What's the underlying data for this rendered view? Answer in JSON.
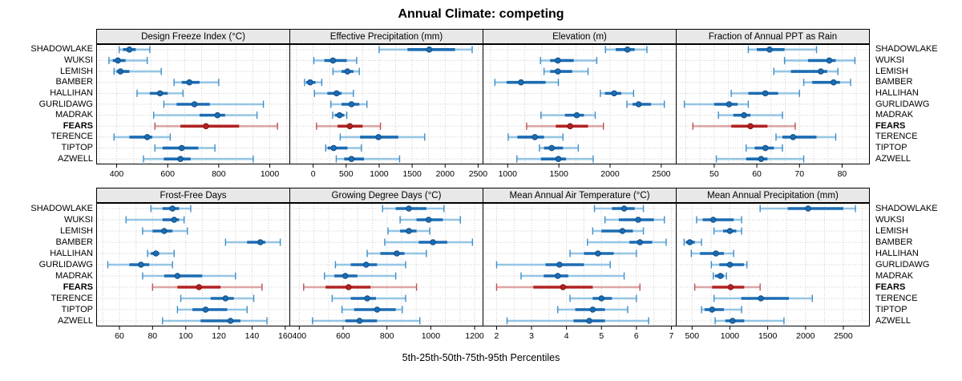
{
  "title": "Annual Climate: competing",
  "caption": "5th-25th-50th-75th-95th Percentiles",
  "colors": {
    "normal_dark": "#1b6cb3",
    "normal_light": "#96c5e3",
    "normal_cap": "#3d8ec9",
    "normal_edge": "#114e84",
    "highlight_dark": "#b22222",
    "highlight_light": "#dca6a6",
    "highlight_cap": "#c05050",
    "highlight_edge": "#7e1414",
    "grid": "#cccccc",
    "header_bg": "#e8e8e8",
    "border": "#000000"
  },
  "chart_data": {
    "type": "percentile-dotplot",
    "percentile_labels": [
      "5th",
      "25th",
      "50th",
      "75th",
      "95th"
    ],
    "sites": [
      "SHADOWLAKE",
      "WUKSI",
      "LEMISH",
      "BAMBER",
      "HALLIHAN",
      "GURLIDAWG",
      "MADRAK",
      "FEARS",
      "TERENCE",
      "TIPTOP",
      "AZWELL"
    ],
    "highlighted_site": "FEARS",
    "panels": [
      {
        "title": "Design Freeze Index (°C)",
        "row": 1,
        "xlim": [
          320,
          1080
        ],
        "ticks": [
          400,
          600,
          800,
          1000
        ],
        "values": [
          [
            410,
            425,
            450,
            475,
            530
          ],
          [
            370,
            385,
            405,
            435,
            520
          ],
          [
            390,
            400,
            415,
            450,
            575
          ],
          [
            625,
            655,
            685,
            725,
            800
          ],
          [
            480,
            530,
            570,
            600,
            660
          ],
          [
            585,
            635,
            705,
            765,
            975
          ],
          [
            545,
            725,
            795,
            825,
            950
          ],
          [
            550,
            650,
            750,
            880,
            1030
          ],
          [
            390,
            450,
            520,
            540,
            610
          ],
          [
            550,
            580,
            655,
            720,
            785
          ],
          [
            505,
            585,
            650,
            690,
            935
          ]
        ]
      },
      {
        "title": "Effective Precipitation (mm)",
        "row": 1,
        "xlim": [
          -360,
          2580
        ],
        "ticks": [
          0,
          500,
          1000,
          1500,
          2000,
          2500
        ],
        "values": [
          [
            1000,
            1430,
            1760,
            2150,
            2410
          ],
          [
            10,
            170,
            300,
            510,
            660
          ],
          [
            300,
            430,
            520,
            610,
            700
          ],
          [
            -130,
            -105,
            -45,
            35,
            130
          ],
          [
            20,
            215,
            355,
            430,
            610
          ],
          [
            270,
            430,
            580,
            700,
            815
          ],
          [
            295,
            330,
            400,
            470,
            510
          ],
          [
            50,
            370,
            555,
            750,
            1020
          ],
          [
            410,
            710,
            990,
            1290,
            1690
          ],
          [
            190,
            220,
            310,
            520,
            730
          ],
          [
            350,
            470,
            580,
            770,
            1310
          ]
        ]
      },
      {
        "title": "Elevation (m)",
        "row": 1,
        "xlim": [
          755,
          2650
        ],
        "ticks": [
          1000,
          1500,
          2000,
          2500
        ],
        "values": [
          [
            1955,
            2055,
            2170,
            2240,
            2360
          ],
          [
            1320,
            1415,
            1490,
            1645,
            1870
          ],
          [
            1355,
            1415,
            1490,
            1630,
            1785
          ],
          [
            875,
            990,
            1130,
            1370,
            1495
          ],
          [
            1905,
            1950,
            2040,
            2110,
            2230
          ],
          [
            2165,
            2220,
            2280,
            2400,
            2530
          ],
          [
            1325,
            1560,
            1675,
            1745,
            1855
          ],
          [
            1185,
            1470,
            1610,
            1785,
            1935
          ],
          [
            1005,
            1095,
            1265,
            1355,
            1540
          ],
          [
            1310,
            1355,
            1430,
            1540,
            1690
          ],
          [
            1090,
            1325,
            1495,
            1570,
            1835
          ]
        ]
      },
      {
        "title": "Fraction of Annual PPT as Rain",
        "row": 1,
        "xlim": [
          41,
          86.5
        ],
        "ticks": [
          50,
          60,
          70,
          80
        ],
        "values": [
          [
            58,
            60,
            63,
            66.5,
            74
          ],
          [
            66.5,
            72,
            77,
            78.5,
            83
          ],
          [
            64,
            68,
            75,
            76.5,
            79
          ],
          [
            71,
            73,
            78,
            79.5,
            82
          ],
          [
            54,
            58,
            62,
            65,
            70
          ],
          [
            43,
            50,
            53.5,
            55.5,
            58
          ],
          [
            51,
            54.5,
            57,
            58.5,
            66
          ],
          [
            45,
            54,
            58.5,
            62.5,
            69
          ],
          [
            64.5,
            66,
            68.5,
            74,
            78.5
          ],
          [
            57.5,
            59.5,
            62,
            64,
            66
          ],
          [
            50.5,
            57.5,
            61,
            62.5,
            71
          ]
        ]
      },
      {
        "title": "Frost-Free Days",
        "row": 2,
        "xlim": [
          46,
          163
        ],
        "ticks": [
          60,
          80,
          100,
          120,
          140,
          160
        ],
        "values": [
          [
            79,
            86,
            92,
            96,
            103
          ],
          [
            64,
            86,
            93,
            96,
            99
          ],
          [
            74,
            80,
            87,
            92,
            101
          ],
          [
            124,
            137,
            145,
            148,
            157
          ],
          [
            77,
            79,
            82,
            84,
            93
          ],
          [
            53,
            66,
            73,
            78,
            92
          ],
          [
            74,
            87,
            95,
            110,
            130
          ],
          [
            80,
            95,
            108,
            121,
            146
          ],
          [
            97,
            115,
            124,
            129,
            141
          ],
          [
            95,
            104,
            112,
            125,
            137
          ],
          [
            86,
            109,
            127,
            133,
            149
          ]
        ]
      },
      {
        "title": "Growing Degree Days (°C)",
        "row": 2,
        "xlim": [
          355,
          1240
        ],
        "ticks": [
          400,
          600,
          800,
          1000,
          1200
        ],
        "values": [
          [
            780,
            840,
            900,
            980,
            1060
          ],
          [
            860,
            935,
            990,
            1055,
            1135
          ],
          [
            805,
            860,
            900,
            935,
            995
          ],
          [
            790,
            945,
            1010,
            1075,
            1190
          ],
          [
            710,
            770,
            845,
            880,
            980
          ],
          [
            565,
            635,
            705,
            755,
            885
          ],
          [
            515,
            560,
            610,
            665,
            840
          ],
          [
            420,
            520,
            625,
            725,
            935
          ],
          [
            550,
            635,
            710,
            750,
            885
          ],
          [
            595,
            650,
            755,
            840,
            870
          ],
          [
            460,
            610,
            675,
            755,
            950
          ]
        ]
      },
      {
        "title": "Mean Annual Air Temperature (°C)",
        "row": 2,
        "xlim": [
          1.6,
          7.15
        ],
        "ticks": [
          2,
          3,
          4,
          5,
          6,
          7
        ],
        "values": [
          [
            4.8,
            5.3,
            5.65,
            5.95,
            6.2
          ],
          [
            5.1,
            5.5,
            6.05,
            6.5,
            6.8
          ],
          [
            4.75,
            5.0,
            5.6,
            5.9,
            6.2
          ],
          [
            4.6,
            5.8,
            6.1,
            6.45,
            6.85
          ],
          [
            4.1,
            4.5,
            4.9,
            5.35,
            6.0
          ],
          [
            2.0,
            3.4,
            3.8,
            4.5,
            5.25
          ],
          [
            2.7,
            3.35,
            3.75,
            4.05,
            5.65
          ],
          [
            2.0,
            3.05,
            3.9,
            4.75,
            6.1
          ],
          [
            4.1,
            4.75,
            5.0,
            5.3,
            6.0
          ],
          [
            3.75,
            4.25,
            4.75,
            5.1,
            5.75
          ],
          [
            2.3,
            4.2,
            4.65,
            5.1,
            6.35
          ]
        ]
      },
      {
        "title": "Mean Annual Precipitation (mm)",
        "row": 2,
        "xlim": [
          285,
          2850
        ],
        "ticks": [
          500,
          1000,
          1500,
          2000,
          2500
        ],
        "values": [
          [
            1400,
            1765,
            2035,
            2500,
            2660
          ],
          [
            560,
            640,
            780,
            1050,
            1155
          ],
          [
            790,
            910,
            1000,
            1085,
            1155
          ],
          [
            395,
            420,
            470,
            535,
            625
          ],
          [
            490,
            605,
            815,
            920,
            1050
          ],
          [
            755,
            860,
            1000,
            1185,
            1225
          ],
          [
            780,
            805,
            875,
            920,
            955
          ],
          [
            535,
            765,
            1010,
            1190,
            1400
          ],
          [
            790,
            1150,
            1410,
            1780,
            2090
          ],
          [
            625,
            665,
            765,
            920,
            1155
          ],
          [
            805,
            940,
            1035,
            1190,
            1715
          ]
        ]
      }
    ]
  }
}
